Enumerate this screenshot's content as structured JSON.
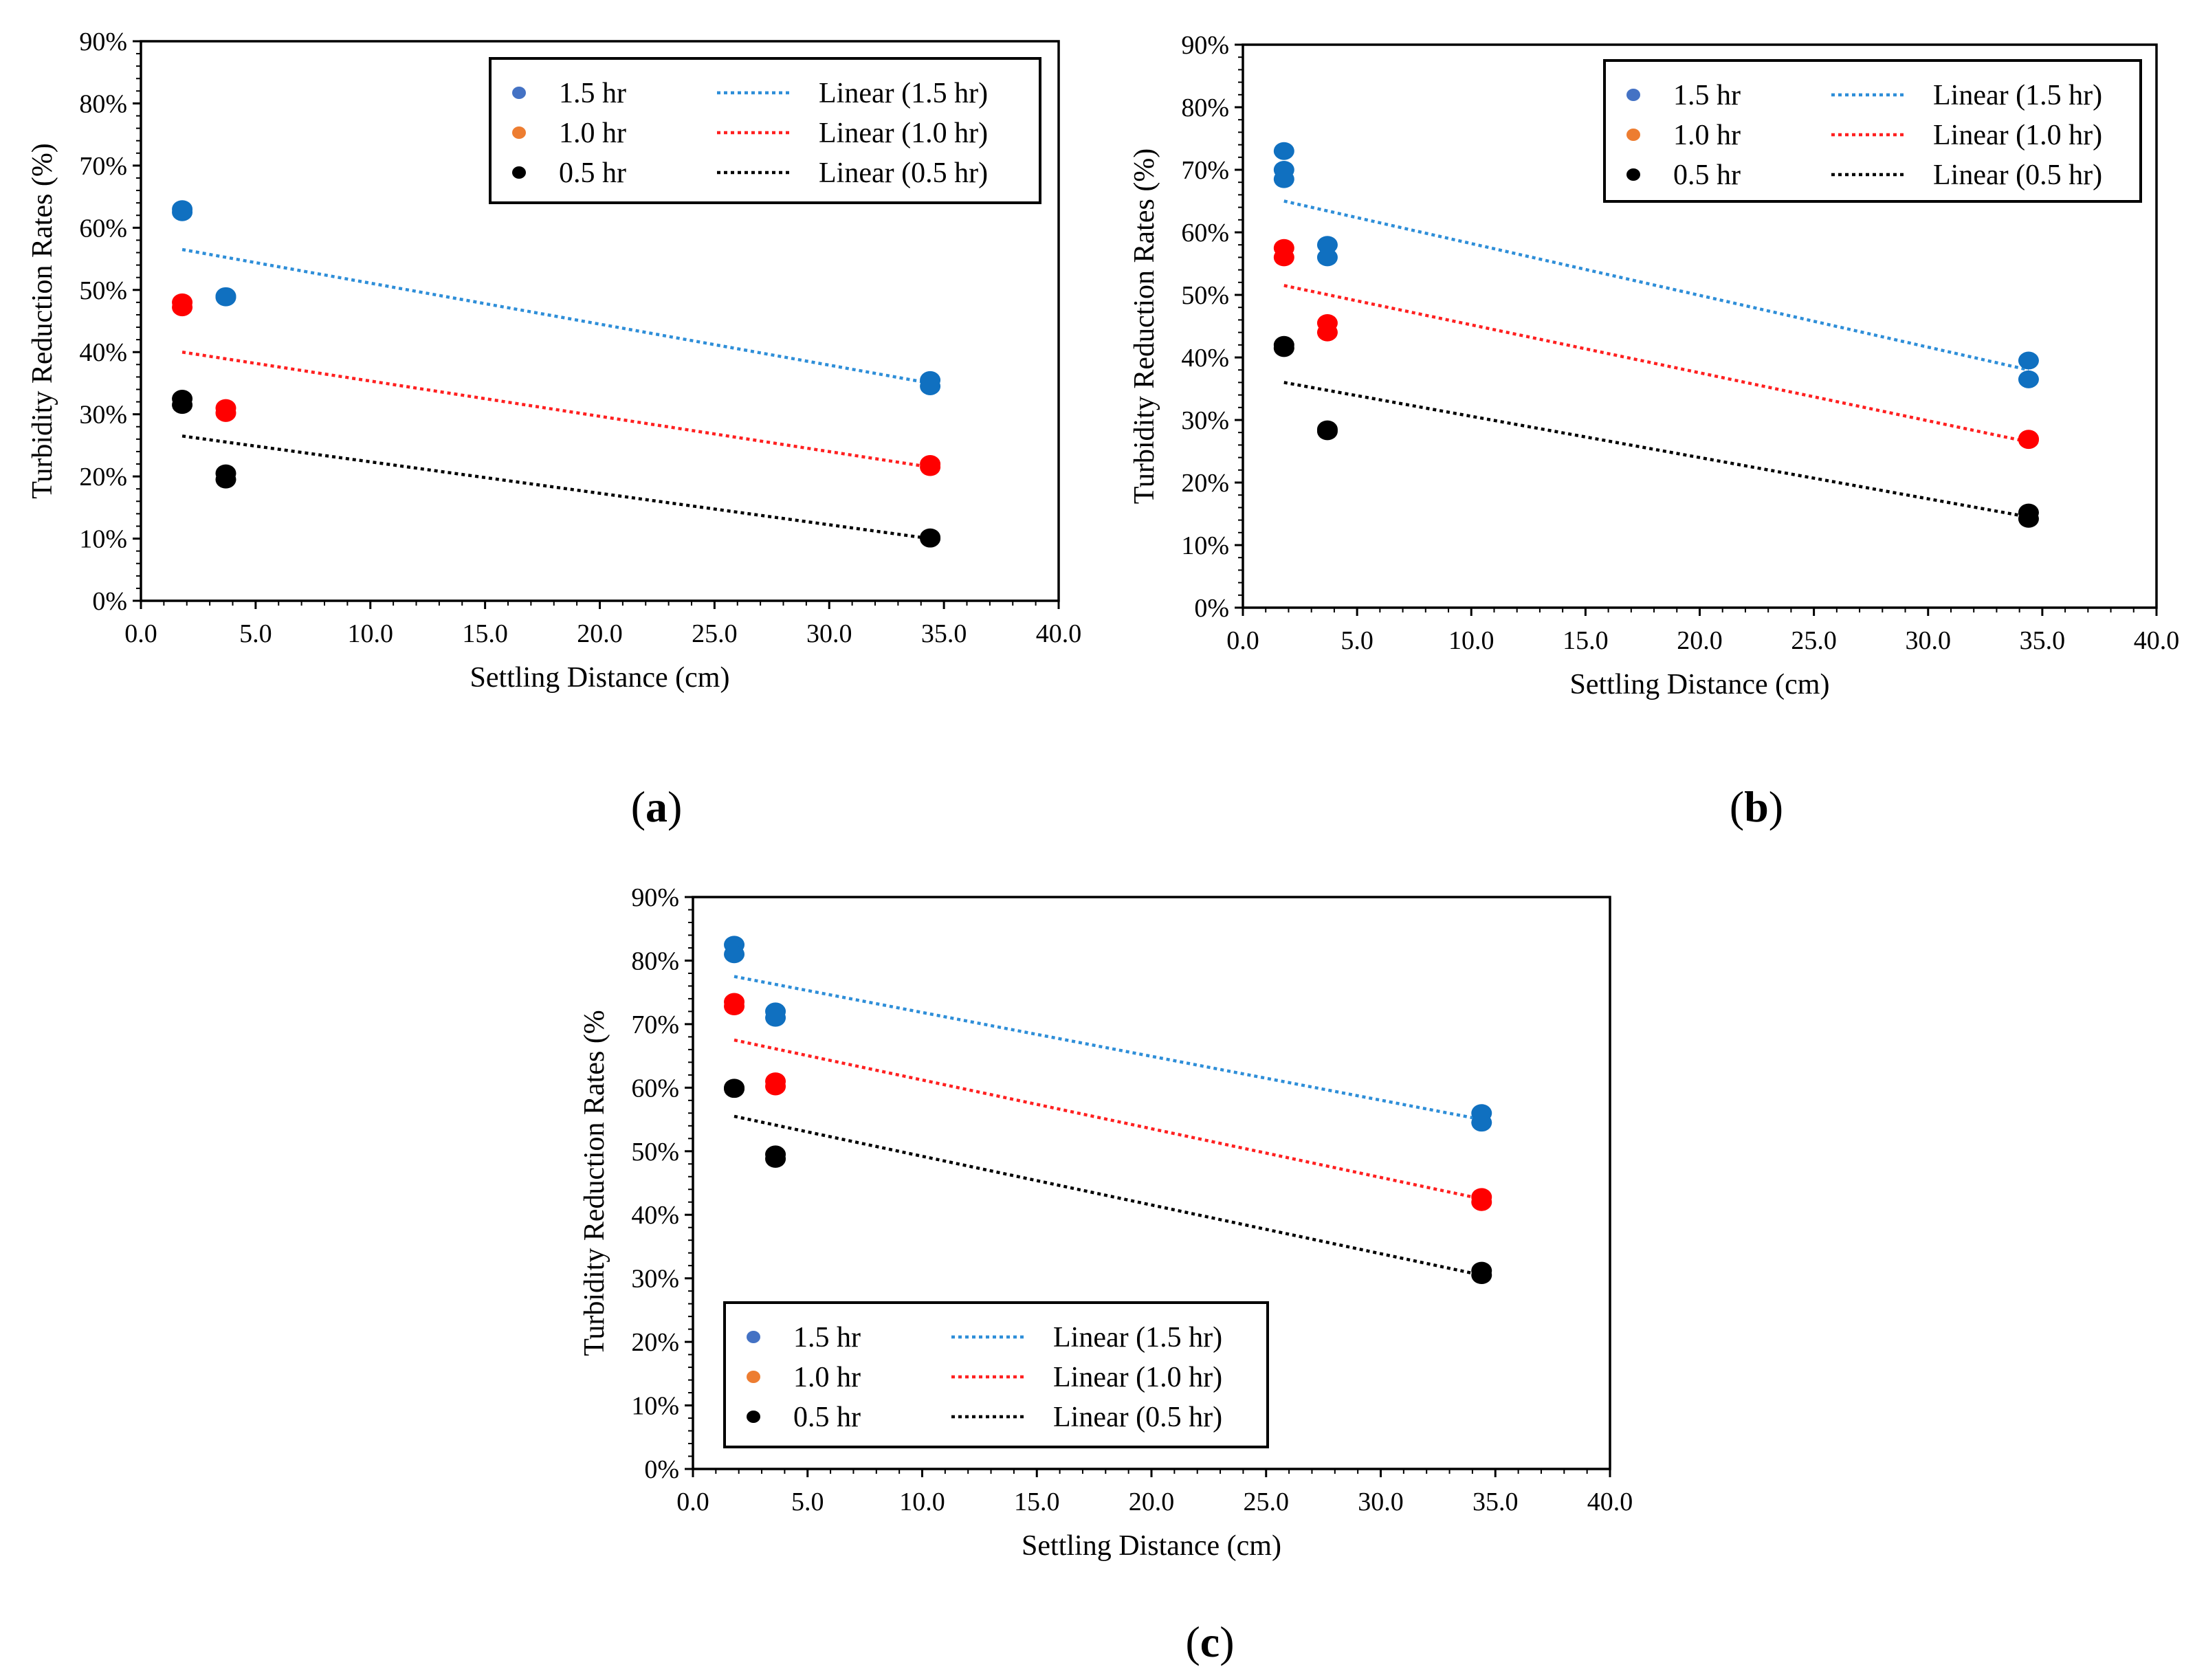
{
  "colors": {
    "series_1_5_point": "#1070C0",
    "series_1_0_point": "#FF0000",
    "series_0_5_point": "#000000",
    "legend_1_5_marker": "#4472C4",
    "legend_1_0_marker": "#ED7D31",
    "legend_0_5_marker": "#000000",
    "trend_1_5": "#2E8ED8",
    "trend_1_0": "#FF2020",
    "trend_0_5": "#000000"
  },
  "chart_data": [
    {
      "type": "scatter",
      "panel_label": [
        "(",
        "a",
        ")"
      ],
      "xlabel": "Settling Distance (cm)",
      "ylabel": "Turbidity Reduction Rates (%)",
      "xlim": [
        0,
        40
      ],
      "ylim": [
        0,
        90
      ],
      "x_ticks": [
        0,
        5,
        10,
        15,
        20,
        25,
        30,
        35,
        40
      ],
      "x_tick_labels": [
        "0.0",
        "5.0",
        "10.0",
        "15.0",
        "20.0",
        "25.0",
        "30.0",
        "35.0",
        "40.0"
      ],
      "y_ticks": [
        0,
        10,
        20,
        30,
        40,
        50,
        60,
        70,
        80,
        90
      ],
      "y_tick_labels": [
        "0%",
        "10%",
        "20%",
        "30%",
        "40%",
        "50%",
        "60%",
        "70%",
        "80%",
        "90%"
      ],
      "legend_position": "top-right",
      "legend": {
        "series_labels": [
          "1.5 hr",
          "1.0 hr",
          "0.5 hr"
        ],
        "trend_labels": [
          "Linear (1.5 hr)",
          "Linear (1.0 hr)",
          "Linear (0.5 hr)"
        ]
      },
      "series": [
        {
          "name": "1.5 hr",
          "points": [
            [
              1.8,
              63
            ],
            [
              1.8,
              62.5
            ],
            [
              3.7,
              49
            ],
            [
              3.7,
              48.8
            ],
            [
              34.4,
              35.5
            ],
            [
              34.4,
              34.5
            ]
          ],
          "trend": [
            [
              1.8,
              56.5
            ],
            [
              34.4,
              35
            ]
          ]
        },
        {
          "name": "1.0 hr",
          "points": [
            [
              1.8,
              48
            ],
            [
              1.8,
              47.2
            ],
            [
              3.7,
              31
            ],
            [
              3.7,
              30.2
            ],
            [
              34.4,
              22
            ],
            [
              34.4,
              21.5
            ]
          ],
          "trend": [
            [
              1.8,
              40
            ],
            [
              34.4,
              21.5
            ]
          ]
        },
        {
          "name": "0.5 hr",
          "points": [
            [
              1.8,
              32.5
            ],
            [
              1.8,
              31.5
            ],
            [
              3.7,
              20.5
            ],
            [
              3.7,
              19.5
            ],
            [
              34.4,
              10.2
            ],
            [
              34.4,
              10
            ]
          ],
          "trend": [
            [
              1.8,
              26.5
            ],
            [
              34.4,
              10
            ]
          ]
        }
      ]
    },
    {
      "type": "scatter",
      "panel_label": [
        "(",
        "b",
        ")"
      ],
      "xlabel": "Settling Distance (cm)",
      "ylabel": "Turbidity Reduction Rates (%)",
      "xlim": [
        0,
        40
      ],
      "ylim": [
        0,
        90
      ],
      "x_ticks": [
        0,
        5,
        10,
        15,
        20,
        25,
        30,
        35,
        40
      ],
      "x_tick_labels": [
        "0.0",
        "5.0",
        "10.0",
        "15.0",
        "20.0",
        "25.0",
        "30.0",
        "35.0",
        "40.0"
      ],
      "y_ticks": [
        0,
        10,
        20,
        30,
        40,
        50,
        60,
        70,
        80,
        90
      ],
      "y_tick_labels": [
        "0%",
        "10%",
        "20%",
        "30%",
        "40%",
        "50%",
        "60%",
        "70%",
        "80%",
        "90%"
      ],
      "legend_position": "top-right",
      "legend": {
        "series_labels": [
          "1.5 hr",
          "1.0 hr",
          "0.5 hr"
        ],
        "trend_labels": [
          "Linear (1.5 hr)",
          "Linear (1.0 hr)",
          "Linear (0.5 hr)"
        ]
      },
      "series": [
        {
          "name": "1.5 hr",
          "points": [
            [
              1.8,
              73
            ],
            [
              1.8,
              70
            ],
            [
              1.8,
              68.5
            ],
            [
              3.7,
              58
            ],
            [
              3.7,
              56
            ],
            [
              34.4,
              39.5
            ],
            [
              34.4,
              36.5
            ]
          ],
          "trend": [
            [
              1.8,
              65
            ],
            [
              34.4,
              38
            ]
          ]
        },
        {
          "name": "1.0 hr",
          "points": [
            [
              1.8,
              57.5
            ],
            [
              1.8,
              56
            ],
            [
              3.7,
              45.5
            ],
            [
              3.7,
              44
            ],
            [
              34.4,
              27
            ],
            [
              34.4,
              26.8
            ]
          ],
          "trend": [
            [
              1.8,
              51.5
            ],
            [
              34.4,
              26.5
            ]
          ]
        },
        {
          "name": "0.5 hr",
          "points": [
            [
              1.8,
              42
            ],
            [
              1.8,
              41.5
            ],
            [
              3.7,
              28.5
            ],
            [
              3.7,
              28.2
            ],
            [
              34.4,
              15.2
            ],
            [
              34.4,
              14.2
            ]
          ],
          "trend": [
            [
              1.8,
              36
            ],
            [
              34.4,
              14.5
            ]
          ]
        }
      ]
    },
    {
      "type": "scatter",
      "panel_label": [
        "(",
        "c",
        ")"
      ],
      "xlabel": "Settling Distance (cm)",
      "ylabel": "Turbidity Reduction Rates (%",
      "xlim": [
        0,
        40
      ],
      "ylim": [
        0,
        90
      ],
      "x_ticks": [
        0,
        5,
        10,
        15,
        20,
        25,
        30,
        35,
        40
      ],
      "x_tick_labels": [
        "0.0",
        "5.0",
        "10.0",
        "15.0",
        "20.0",
        "25.0",
        "30.0",
        "35.0",
        "40.0"
      ],
      "y_ticks": [
        0,
        10,
        20,
        30,
        40,
        50,
        60,
        70,
        80,
        90
      ],
      "y_tick_labels": [
        "0%",
        "10%",
        "20%",
        "30%",
        "40%",
        "50%",
        "60%",
        "70%",
        "80%",
        "90%"
      ],
      "legend_position": "bottom-left",
      "legend": {
        "series_labels": [
          "1.5 hr",
          "1.0 hr",
          "0.5 hr"
        ],
        "trend_labels": [
          "Linear (1.5 hr)",
          "Linear (1.0 hr)",
          "Linear (0.5 hr)"
        ]
      },
      "series": [
        {
          "name": "1.5 hr",
          "points": [
            [
              1.8,
              82.5
            ],
            [
              1.8,
              81
            ],
            [
              3.6,
              72
            ],
            [
              3.6,
              71
            ],
            [
              34.4,
              56
            ],
            [
              34.4,
              54.5
            ]
          ],
          "trend": [
            [
              1.8,
              77.5
            ],
            [
              34.4,
              55
            ]
          ]
        },
        {
          "name": "1.0 hr",
          "points": [
            [
              1.8,
              73.5
            ],
            [
              1.8,
              72.8
            ],
            [
              3.6,
              61
            ],
            [
              3.6,
              60.2
            ],
            [
              34.4,
              42.8
            ],
            [
              34.4,
              42
            ]
          ],
          "trend": [
            [
              1.8,
              67.5
            ],
            [
              34.4,
              42.5
            ]
          ]
        },
        {
          "name": "0.5 hr",
          "points": [
            [
              1.8,
              60
            ],
            [
              1.8,
              59.8
            ],
            [
              3.6,
              49.5
            ],
            [
              3.6,
              48.8
            ],
            [
              34.4,
              31.2
            ],
            [
              34.4,
              30.5
            ]
          ],
          "trend": [
            [
              1.8,
              55.5
            ],
            [
              34.4,
              30.5
            ]
          ]
        }
      ]
    }
  ]
}
